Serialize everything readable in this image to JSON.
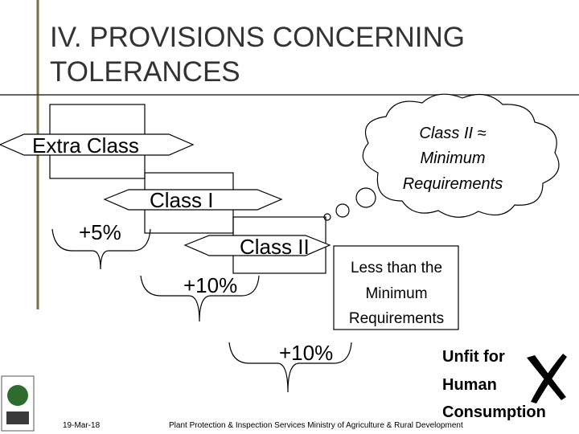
{
  "header": {
    "title_lines": [
      "IV. PROVISIONS CONCERNING",
      "TOLERANCES"
    ]
  },
  "diagram": {
    "classes": [
      "Extra Class",
      "Class I",
      "Class II"
    ],
    "tolerances": [
      "+5%",
      "+10%",
      "+10%"
    ],
    "cloud_lines": [
      "Class II ≈",
      "Minimum",
      "Requirements"
    ],
    "below_minimum_lines": [
      "Less than the",
      "Minimum",
      "Requirements"
    ],
    "unfit_lines": [
      "Unfit for",
      "Human",
      "Consumption"
    ]
  },
  "footer": {
    "date": "19-Mar-18",
    "organization": "Plant Protection & Inspection Services Ministry of Agriculture & Rural Development"
  }
}
